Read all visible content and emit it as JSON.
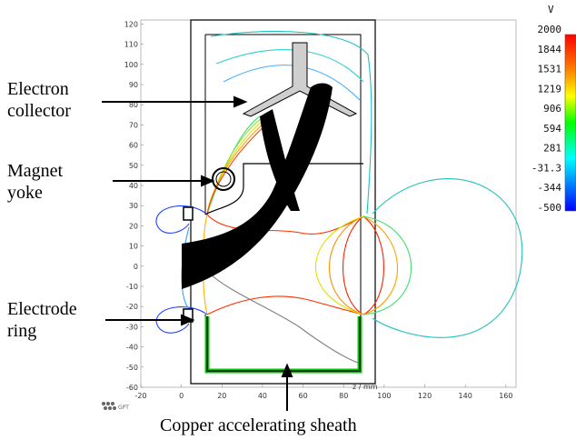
{
  "labels": {
    "electron_collector": [
      "Electron",
      "collector"
    ],
    "magnet_yoke": [
      "Magnet",
      "yoke"
    ],
    "electrode_ring": [
      "Electrode",
      "ring"
    ],
    "copper_sheath": "Copper accelerating sheath"
  },
  "axes": {
    "x_label": "z / mm",
    "x_ticks": [
      -20,
      0,
      20,
      40,
      60,
      80,
      100,
      120,
      140,
      160
    ],
    "y_ticks": [
      120,
      110,
      100,
      90,
      80,
      70,
      60,
      50,
      40,
      30,
      20,
      10,
      0,
      -10,
      -20,
      -30,
      -40,
      -50,
      -60
    ],
    "x_range": [
      -20,
      165
    ],
    "y_range": [
      -60,
      122
    ]
  },
  "colorbar": {
    "unit": "V",
    "levels": [
      "2000",
      "1844",
      "1531",
      "1219",
      "906",
      "594",
      "281",
      "-31.3",
      "-344",
      "-500"
    ],
    "range": [
      -500,
      2000
    ]
  },
  "logo_text": "GPT",
  "colors": {
    "outline": "#000000",
    "collector_fill": "#cfcfcf",
    "beam": "#000000",
    "sheath": "#00cc00"
  }
}
